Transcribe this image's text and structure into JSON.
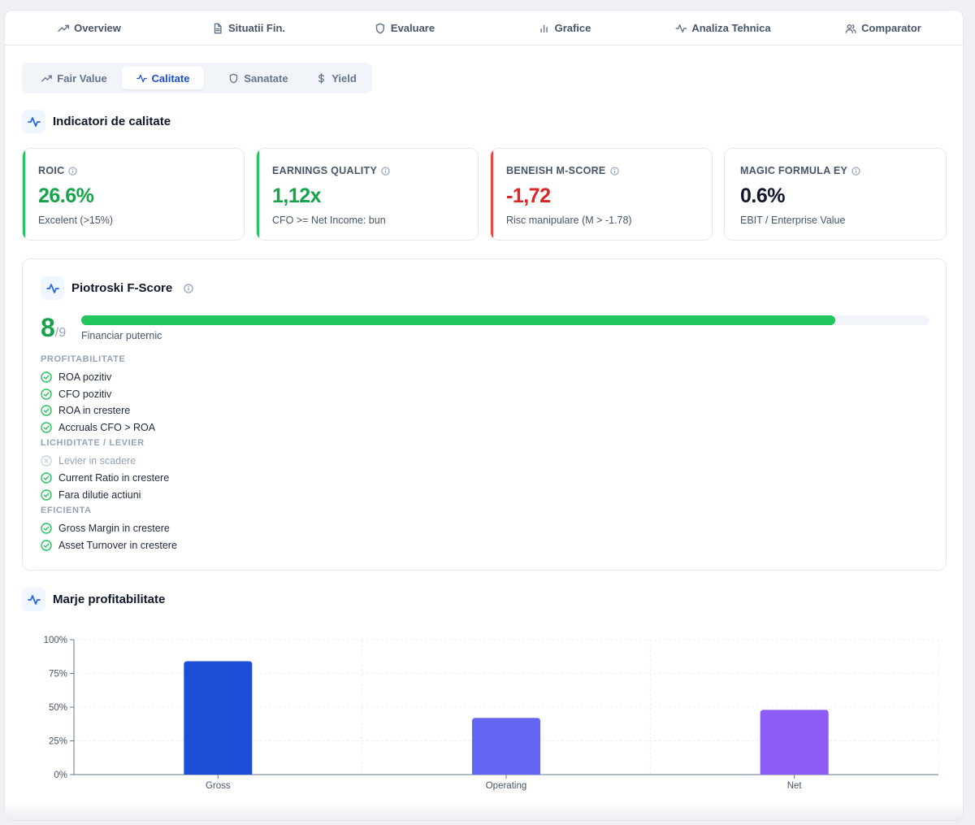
{
  "top_tabs": [
    {
      "label": "Overview",
      "icon": "trending-up-icon"
    },
    {
      "label": "Situatii Fin.",
      "icon": "document-icon"
    },
    {
      "label": "Evaluare",
      "icon": "shield-icon"
    },
    {
      "label": "Grafice",
      "icon": "bar-chart-icon"
    },
    {
      "label": "Analiza Tehnica",
      "icon": "activity-icon"
    },
    {
      "label": "Comparator",
      "icon": "users-icon"
    }
  ],
  "sub_tabs": [
    {
      "label": "Fair Value",
      "icon": "trending-up-icon",
      "active": false
    },
    {
      "label": "Calitate",
      "icon": "activity-icon",
      "active": true
    },
    {
      "label": "Sanatate",
      "icon": "shield-icon",
      "active": false
    },
    {
      "label": "Yield",
      "icon": "dollar-icon",
      "active": false
    }
  ],
  "quality": {
    "title": "Indicatori de calitate",
    "cards": [
      {
        "label": "ROIC",
        "value": "26.6%",
        "sub": "Excelent (>15%)",
        "accent": "#22c55e",
        "value_color": "#16a34a"
      },
      {
        "label": "EARNINGS QUALITY",
        "value": "1,12x",
        "sub": "CFO >= Net Income: bun",
        "accent": "#22c55e",
        "value_color": "#16a34a"
      },
      {
        "label": "BENEISH M-SCORE",
        "value": "-1,72",
        "sub": "Risc manipulare (M > -1.78)",
        "accent": "#ef4444",
        "value_color": "#dc2626"
      },
      {
        "label": "MAGIC FORMULA EY",
        "value": "0.6%",
        "sub": "EBIT / Enterprise Value",
        "accent": null,
        "value_color": "#0f172a"
      }
    ]
  },
  "piotroski": {
    "title": "Piotroski F-Score",
    "score": "8",
    "max": "/9",
    "progress_fraction": 0.8889,
    "verdict": "Financiar puternic",
    "groups": [
      {
        "label": "PROFITABILITATE",
        "items": [
          {
            "text": "ROA pozitiv",
            "pass": true
          },
          {
            "text": "CFO pozitiv",
            "pass": true
          },
          {
            "text": "ROA in crestere",
            "pass": true
          },
          {
            "text": "Accruals CFO > ROA",
            "pass": true
          }
        ]
      },
      {
        "label": "LICHIDITATE / LEVIER",
        "items": [
          {
            "text": "Levier in scadere",
            "pass": false
          },
          {
            "text": "Current Ratio in crestere",
            "pass": true
          },
          {
            "text": "Fara dilutie actiuni",
            "pass": true
          }
        ]
      },
      {
        "label": "EFICIENTA",
        "items": [
          {
            "text": "Gross Margin in crestere",
            "pass": true
          },
          {
            "text": "Asset Turnover in crestere",
            "pass": true
          }
        ]
      }
    ]
  },
  "margins": {
    "title": "Marje profitabilitate"
  },
  "chart_data": {
    "type": "bar",
    "categories": [
      "Gross",
      "Operating",
      "Net"
    ],
    "values": [
      84,
      42,
      48
    ],
    "colors": [
      "#1d4ed8",
      "#6366f1",
      "#8b5cf6"
    ],
    "title": "",
    "xlabel": "",
    "ylabel": "",
    "ylim": [
      0,
      100
    ],
    "yticks": [
      "0%",
      "25%",
      "50%",
      "75%",
      "100%"
    ],
    "grid": true,
    "legend": "none"
  }
}
